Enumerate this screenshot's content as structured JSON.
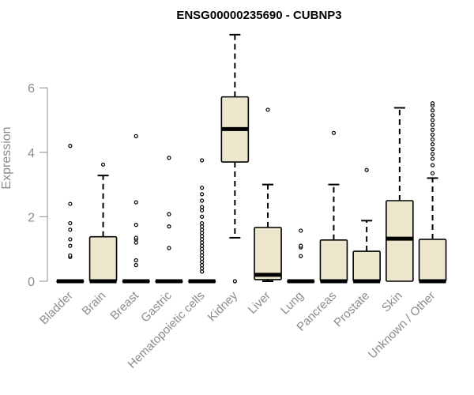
{
  "chart_data": {
    "type": "box",
    "title": "ENSG00000235690 - CUBNP3",
    "xlabel": "",
    "ylabel": "Expression",
    "ylim": [
      0,
      7.7
    ],
    "yticks": [
      0,
      2,
      4,
      6
    ],
    "grid": false,
    "box_fill": "#ece6cd",
    "median_color": "#000000",
    "categories": [
      "Bladder",
      "Brain",
      "Breast",
      "Gastric",
      "Hematopoietic cells",
      "Kidney",
      "Liver",
      "Lung",
      "Pancreas",
      "Prostate",
      "Skin",
      "Unknown / Other"
    ],
    "boxes": [
      {
        "category": "Bladder",
        "q1": 0,
        "median": 0,
        "q3": 0,
        "whisker_low": 0,
        "whisker_high": 0,
        "outliers": [
          0.75,
          0.8,
          1.1,
          1.3,
          1.6,
          1.8,
          2.4,
          4.2
        ]
      },
      {
        "category": "Brain",
        "q1": 0,
        "median": 0,
        "q3": 1.38,
        "whisker_low": 0,
        "whisker_high": 3.28,
        "outliers": [
          3.62
        ]
      },
      {
        "category": "Breast",
        "q1": 0,
        "median": 0,
        "q3": 0,
        "whisker_low": 0,
        "whisker_high": 0,
        "outliers": [
          0.5,
          0.65,
          1.2,
          1.3,
          1.35,
          1.75,
          2.45,
          4.5
        ]
      },
      {
        "category": "Gastric",
        "q1": 0,
        "median": 0,
        "q3": 0,
        "whisker_low": 0,
        "whisker_high": 0,
        "outliers": [
          1.03,
          1.7,
          2.08,
          3.83
        ]
      },
      {
        "category": "Hematopoietic cells",
        "q1": 0,
        "median": 0,
        "q3": 0,
        "whisker_low": 0,
        "whisker_high": 0,
        "outliers": [
          0.3,
          0.4,
          0.5,
          0.6,
          0.7,
          0.8,
          0.9,
          1.0,
          1.1,
          1.2,
          1.3,
          1.4,
          1.5,
          1.6,
          1.7,
          1.8,
          2.0,
          2.2,
          2.3,
          2.5,
          2.7,
          2.9,
          3.75
        ]
      },
      {
        "category": "Kidney",
        "q1": 3.7,
        "median": 4.72,
        "q3": 5.72,
        "whisker_low": 1.35,
        "whisker_high": 7.65,
        "outliers": [
          0
        ]
      },
      {
        "category": "Liver",
        "q1": 0.05,
        "median": 0.2,
        "q3": 1.67,
        "whisker_low": 0,
        "whisker_high": 3.0,
        "outliers": [
          5.32
        ]
      },
      {
        "category": "Lung",
        "q1": 0,
        "median": 0,
        "q3": 0,
        "whisker_low": 0,
        "whisker_high": 0,
        "outliers": [
          0.78,
          1.05,
          1.1,
          1.57
        ]
      },
      {
        "category": "Pancreas",
        "q1": 0,
        "median": 0,
        "q3": 1.28,
        "whisker_low": 0,
        "whisker_high": 3.0,
        "outliers": [
          4.6
        ]
      },
      {
        "category": "Prostate",
        "q1": 0,
        "median": 0,
        "q3": 0.93,
        "whisker_low": 0,
        "whisker_high": 1.88,
        "outliers": [
          3.45
        ]
      },
      {
        "category": "Skin",
        "q1": 0,
        "median": 1.32,
        "q3": 2.5,
        "whisker_low": 0,
        "whisker_high": 5.38,
        "outliers": []
      },
      {
        "category": "Unknown / Other",
        "q1": 0,
        "median": 0,
        "q3": 1.3,
        "whisker_low": 0,
        "whisker_high": 3.2,
        "outliers": [
          3.35,
          3.6,
          3.8,
          3.95,
          4.1,
          4.25,
          4.4,
          4.55,
          4.7,
          4.85,
          5.0,
          5.15,
          5.3,
          5.45,
          5.52
        ]
      }
    ]
  }
}
